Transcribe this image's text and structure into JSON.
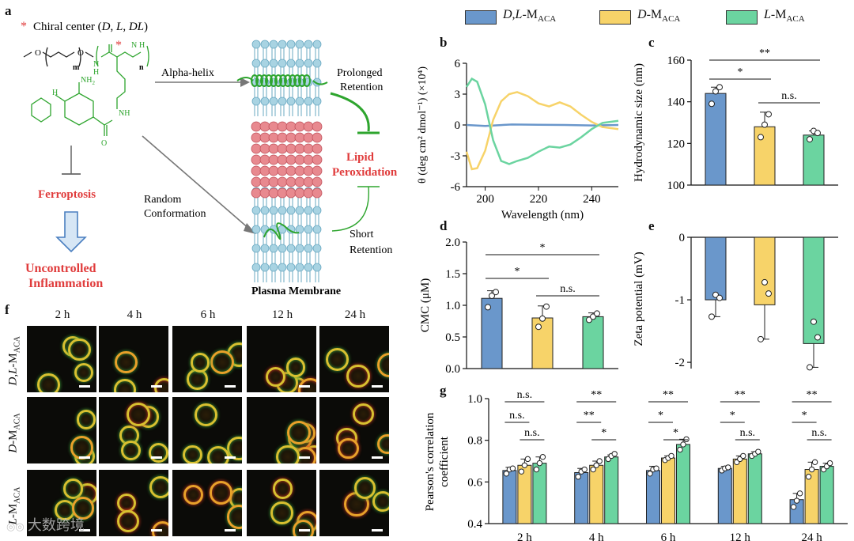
{
  "colors": {
    "blue": "#6a97cb",
    "yellow": "#f7d369",
    "green": "#6bd4a0",
    "red": "#e03c3c",
    "lightblue": "#a8d3e2",
    "pink": "#e8898f",
    "darkgreen": "#2ea52e"
  },
  "panel_labels": {
    "a": "a",
    "b": "b",
    "c": "c",
    "d": "d",
    "e": "e",
    "f": "f",
    "g": "g"
  },
  "schematic": {
    "chiral_star": "*",
    "chiral_center": "Chiral center (",
    "chiral_d": "D",
    "chiral_l": "L",
    "chiral_dl": "DL",
    "chiral_close": ")",
    "alpha_helix": "Alpha-helix",
    "random_1": "Random",
    "random_2": "Conformation",
    "prolonged_1": "Prolonged",
    "prolonged_2": "Retention",
    "short_1": "Short",
    "short_2": "Retention",
    "lipid_1": "Lipid",
    "lipid_2": "Peroxidation",
    "ferroptosis": "Ferroptosis",
    "uncontrolled_1": "Uncontrolled",
    "uncontrolled_2": "Inflammation",
    "plasma_membrane": "Plasma Membrane",
    "chem": {
      "o1": "O",
      "o2": "O",
      "m": "m",
      "n": "n",
      "nh2": "NH",
      "nh2_sub": "2",
      "nh": "H",
      "n_label": "N",
      "h_label": "H",
      "nh_side": "NH",
      "hn": "N",
      "hn_h": "H",
      "o3": "O",
      "h_sub": "H"
    }
  },
  "legend": [
    {
      "italic": "D,L",
      "rest": "-M",
      "sub": "ACA"
    },
    {
      "italic": "D",
      "rest": "-M",
      "sub": "ACA"
    },
    {
      "italic": "L",
      "rest": "-M",
      "sub": "ACA"
    }
  ],
  "chart_data": [
    {
      "id": "b",
      "type": "line",
      "xlabel": "Wavelength (nm)",
      "ylabel": "θ (deg cm² dmol⁻¹) (×10⁴)",
      "xlim": [
        193,
        250
      ],
      "ylim": [
        -6,
        6
      ],
      "xticks": [
        "200",
        "220",
        "240"
      ],
      "yticks": [
        "6",
        "3",
        "0",
        "-3",
        "-6"
      ],
      "series": [
        {
          "name": "D,L-MACA",
          "x": [
            193,
            200,
            210,
            220,
            230,
            240,
            250
          ],
          "y": [
            0,
            -0.1,
            0.05,
            0.02,
            0.0,
            -0.05,
            0.0
          ]
        },
        {
          "name": "D-MACA",
          "x": [
            193,
            195,
            197,
            200,
            203,
            206,
            209,
            212,
            216,
            220,
            224,
            228,
            232,
            236,
            240,
            244,
            250
          ],
          "y": [
            -2.6,
            -4.3,
            -4.2,
            -2.5,
            0.5,
            2.3,
            3.0,
            3.2,
            2.8,
            2.1,
            1.8,
            2.2,
            1.8,
            1.0,
            0.3,
            -0.2,
            -0.4
          ]
        },
        {
          "name": "L-MACA",
          "x": [
            193,
            195,
            197,
            200,
            203,
            206,
            209,
            212,
            216,
            220,
            224,
            228,
            232,
            236,
            240,
            244,
            250
          ],
          "y": [
            3.7,
            4.5,
            4.2,
            2.0,
            -1.5,
            -3.5,
            -3.8,
            -3.5,
            -3.2,
            -2.6,
            -2.1,
            -2.2,
            -1.9,
            -1.2,
            -0.4,
            0.2,
            0.4
          ]
        }
      ]
    },
    {
      "id": "c",
      "type": "bar",
      "ylabel": "Hydrodynamic size (nm)",
      "ylim": [
        100,
        160
      ],
      "yticks": [
        "100",
        "120",
        "140",
        "160"
      ],
      "values": [
        144,
        128,
        124
      ],
      "errors": [
        3,
        7,
        2
      ],
      "points": [
        [
          139,
          145,
          147
        ],
        [
          123,
          129,
          134
        ],
        [
          122,
          126,
          125
        ]
      ],
      "significance": [
        {
          "from": 0,
          "to": 1,
          "text": "*"
        },
        {
          "from": 0,
          "to": 2,
          "text": "**"
        },
        {
          "from": 1,
          "to": 2,
          "text": "n.s."
        }
      ]
    },
    {
      "id": "d",
      "type": "bar",
      "ylabel": "CMC (μM)",
      "ylim": [
        0,
        2
      ],
      "yticks": [
        "0.0",
        "0.5",
        "1.0",
        "1.5",
        "2.0"
      ],
      "values": [
        1.11,
        0.8,
        0.82
      ],
      "errors": [
        0.12,
        0.19,
        0.06
      ],
      "points": [
        [
          0.97,
          1.15,
          1.21
        ],
        [
          0.66,
          0.79,
          0.98
        ],
        [
          0.77,
          0.82,
          0.87
        ]
      ],
      "significance": [
        {
          "from": 0,
          "to": 1,
          "text": "*"
        },
        {
          "from": 0,
          "to": 2,
          "text": "*"
        },
        {
          "from": 1,
          "to": 2,
          "text": "n.s."
        }
      ]
    },
    {
      "id": "e",
      "type": "bar",
      "ylabel": "Zeta potential (mV)",
      "ylim": [
        -2.1,
        0
      ],
      "yticks": [
        "0",
        "-1",
        "-2"
      ],
      "values": [
        -1.0,
        -1.08,
        -1.7
      ],
      "errors": [
        0.27,
        0.55,
        0.38
      ],
      "points": [
        [
          -1.27,
          -0.92,
          -0.97
        ],
        [
          -1.63,
          -0.72,
          -0.9
        ],
        [
          -2.08,
          -1.35,
          -1.6
        ]
      ]
    },
    {
      "id": "g",
      "type": "bar",
      "ylabel_1": "Pearson's correlation",
      "ylabel_2": "coefficient",
      "ylim": [
        0.4,
        1.0
      ],
      "yticks": [
        "0.4",
        "0.6",
        "0.8",
        "1.0"
      ],
      "categories": [
        "2 h",
        "4 h",
        "6 h",
        "12 h",
        "24 h"
      ],
      "series": [
        {
          "name": "D,L-MACA",
          "values": [
            0.655,
            0.645,
            0.655,
            0.665,
            0.515
          ],
          "errors": [
            0.015,
            0.02,
            0.02,
            0.01,
            0.03
          ],
          "points": [
            [
              0.64,
              0.66,
              0.665
            ],
            [
              0.625,
              0.65,
              0.66
            ],
            [
              0.64,
              0.66,
              0.665
            ],
            [
              0.655,
              0.665,
              0.67
            ],
            [
              0.48,
              0.51,
              0.545
            ]
          ]
        },
        {
          "name": "D-MACA",
          "values": [
            0.68,
            0.68,
            0.715,
            0.71,
            0.66
          ],
          "errors": [
            0.03,
            0.02,
            0.01,
            0.015,
            0.035
          ],
          "points": [
            [
              0.65,
              0.68,
              0.71
            ],
            [
              0.66,
              0.68,
              0.7
            ],
            [
              0.705,
              0.715,
              0.725
            ],
            [
              0.695,
              0.71,
              0.725
            ],
            [
              0.625,
              0.66,
              0.695
            ]
          ]
        },
        {
          "name": "L-MACA",
          "values": [
            0.69,
            0.72,
            0.78,
            0.735,
            0.675
          ],
          "errors": [
            0.03,
            0.01,
            0.025,
            0.01,
            0.015
          ],
          "points": [
            [
              0.66,
              0.69,
              0.72
            ],
            [
              0.71,
              0.725,
              0.735
            ],
            [
              0.755,
              0.78,
              0.805
            ],
            [
              0.725,
              0.735,
              0.745
            ],
            [
              0.66,
              0.675,
              0.69
            ]
          ]
        }
      ],
      "significance": [
        [
          {
            "a": 0,
            "b": 1,
            "text": "n.s."
          },
          {
            "a": 0,
            "b": 2,
            "text": "n.s."
          },
          {
            "a": 1,
            "b": 2,
            "text": "n.s."
          }
        ],
        [
          {
            "a": 0,
            "b": 1,
            "text": "**"
          },
          {
            "a": 0,
            "b": 2,
            "text": "**"
          },
          {
            "a": 1,
            "b": 2,
            "text": "*"
          }
        ],
        [
          {
            "a": 0,
            "b": 1,
            "text": "*"
          },
          {
            "a": 0,
            "b": 2,
            "text": "**"
          },
          {
            "a": 1,
            "b": 2,
            "text": "*"
          }
        ],
        [
          {
            "a": 0,
            "b": 1,
            "text": "*"
          },
          {
            "a": 0,
            "b": 2,
            "text": "**"
          },
          {
            "a": 1,
            "b": 2,
            "text": "n.s."
          }
        ],
        [
          {
            "a": 0,
            "b": 1,
            "text": "*"
          },
          {
            "a": 0,
            "b": 2,
            "text": "**"
          },
          {
            "a": 1,
            "b": 2,
            "text": "n.s."
          }
        ]
      ]
    }
  ],
  "microscopy": {
    "timepoints": [
      "2 h",
      "4 h",
      "6 h",
      "12 h",
      "24 h"
    ],
    "rows": [
      {
        "italic": "D,L",
        "rest": "-M",
        "sub": "ACA"
      },
      {
        "italic": "D",
        "rest": "-M",
        "sub": "ACA"
      },
      {
        "italic": "L",
        "rest": "-M",
        "sub": "ACA"
      }
    ]
  },
  "watermark": "大数跨境"
}
